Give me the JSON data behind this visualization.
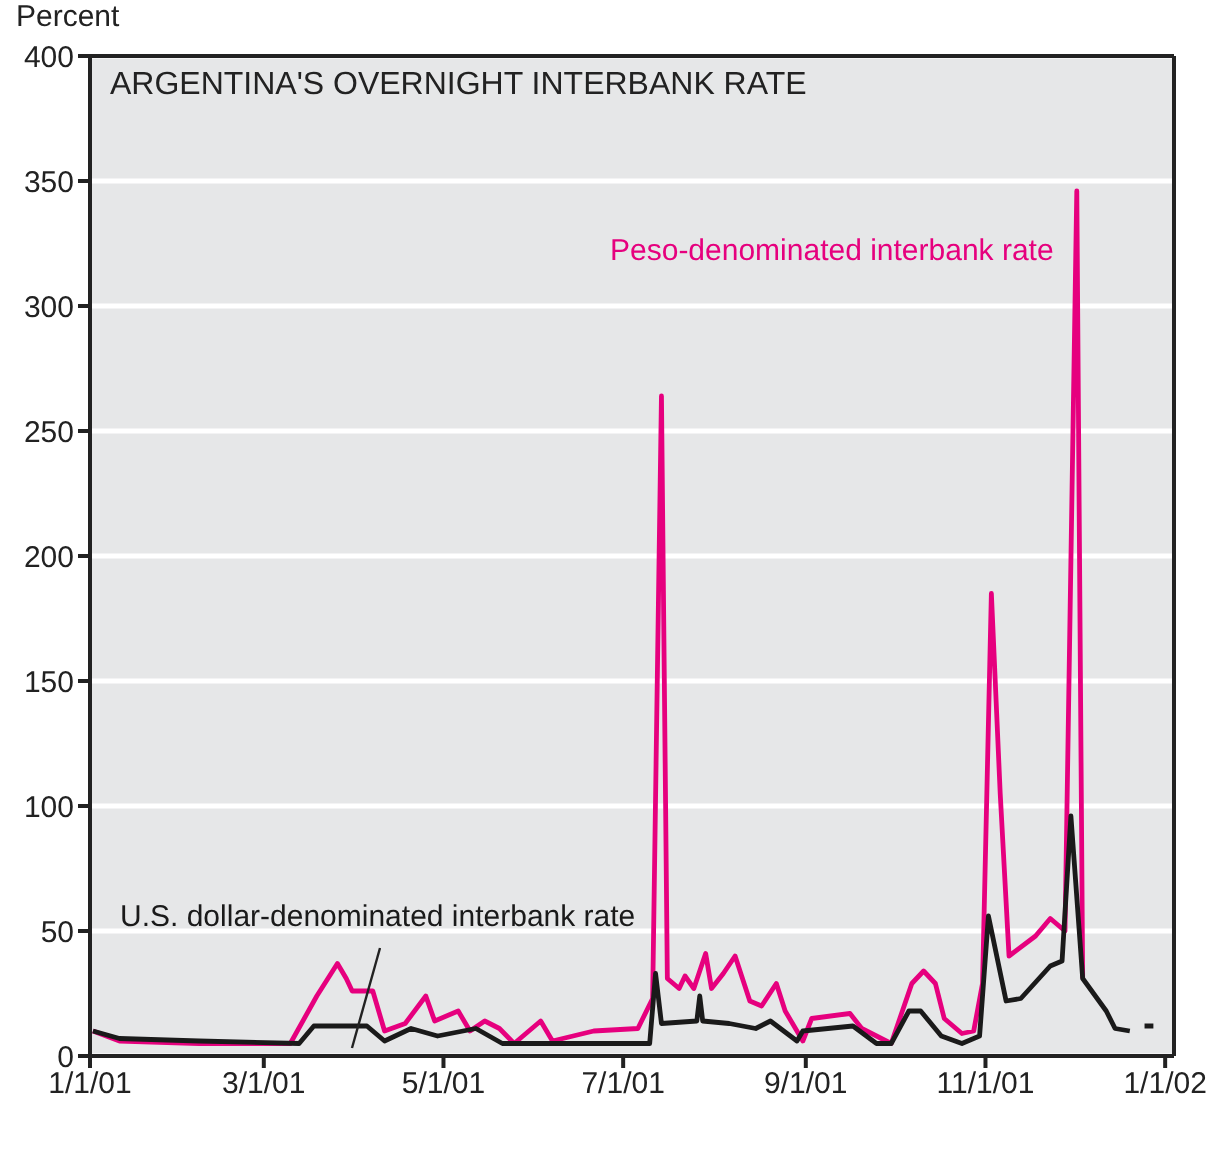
{
  "chart_data": {
    "type": "line",
    "title": "ARGENTINA'S OVERNIGHT INTERBANK RATE",
    "ylabel": "Percent",
    "xlim": [
      "2001-01-01",
      "2002-01-04"
    ],
    "xticks": [
      {
        "value": "2001-01-01",
        "label": "1/1/01"
      },
      {
        "value": "2001-03-01",
        "label": "3/1/01"
      },
      {
        "value": "2001-05-01",
        "label": "5/1/01"
      },
      {
        "value": "2001-07-01",
        "label": "7/1/01"
      },
      {
        "value": "2001-09-01",
        "label": "9/1/01"
      },
      {
        "value": "2001-11-01",
        "label": "11/1/01"
      },
      {
        "value": "2002-01-01",
        "label": "1/1/02"
      }
    ],
    "ylim": [
      0,
      400
    ],
    "yticks": [
      0,
      50,
      100,
      150,
      200,
      250,
      300,
      350,
      400
    ],
    "grid": "y",
    "marker": "none",
    "line_style": "solid",
    "series": [
      {
        "name": "Peso-denominated interbank rate",
        "color": "#e6007e",
        "x": [
          "2001-01-02",
          "2001-01-11",
          "2001-02-07",
          "2001-03-10",
          "2001-03-19",
          "2001-03-26",
          "2001-03-29",
          "2001-03-31",
          "2001-04-07",
          "2001-04-11",
          "2001-04-18",
          "2001-04-25",
          "2001-04-28",
          "2001-05-06",
          "2001-05-10",
          "2001-05-15",
          "2001-05-20",
          "2001-05-25",
          "2001-06-03",
          "2001-06-07",
          "2001-06-21",
          "2001-07-06",
          "2001-07-11",
          "2001-07-14",
          "2001-07-16",
          "2001-07-20",
          "2001-07-22",
          "2001-07-25",
          "2001-07-29",
          "2001-07-31",
          "2001-08-04",
          "2001-08-08",
          "2001-08-13",
          "2001-08-17",
          "2001-08-22",
          "2001-08-25",
          "2001-08-31",
          "2001-09-03",
          "2001-09-16",
          "2001-09-20",
          "2001-09-30",
          "2001-10-07",
          "2001-10-11",
          "2001-10-15",
          "2001-10-18",
          "2001-10-24",
          "2001-10-28",
          "2001-10-31",
          "2001-11-03",
          "2001-11-06",
          "2001-11-09",
          "2001-11-18",
          "2001-11-23",
          "2001-11-28",
          "2001-12-02",
          "2001-12-04"
        ],
        "values": [
          10,
          6,
          5,
          5,
          24,
          37,
          31,
          26,
          26,
          10,
          13,
          24,
          14,
          18,
          10,
          14,
          11,
          5,
          14,
          6,
          10,
          11,
          23,
          264,
          31,
          27,
          32,
          27,
          41,
          27,
          33,
          40,
          22,
          20,
          29,
          18,
          6,
          15,
          17,
          11,
          5,
          29,
          34,
          29,
          15,
          9,
          10,
          29,
          185,
          105,
          40,
          48,
          55,
          50,
          346,
          31
        ]
      },
      {
        "name": "U.S. dollar-denominated interbank rate",
        "color": "#1a1a1a",
        "x": [
          "2001-01-02",
          "2001-01-11",
          "2001-02-07",
          "2001-03-13",
          "2001-03-18",
          "2001-04-05",
          "2001-04-11",
          "2001-04-20",
          "2001-04-29",
          "2001-05-12",
          "2001-05-21",
          "2001-06-22",
          "2001-07-10",
          "2001-07-12",
          "2001-07-14",
          "2001-07-26",
          "2001-07-27",
          "2001-07-28",
          "2001-08-06",
          "2001-08-15",
          "2001-08-20",
          "2001-08-29",
          "2001-08-31",
          "2001-09-17",
          "2001-09-25",
          "2001-09-30",
          "2001-10-06",
          "2001-10-10",
          "2001-10-17",
          "2001-10-24",
          "2001-10-30",
          "2001-11-02",
          "2001-11-08",
          "2001-11-13",
          "2001-11-23",
          "2001-11-27",
          "2001-11-30",
          "2001-12-04",
          "2001-12-12",
          "2001-12-15",
          "2001-12-20",
          "2001-12-23",
          "2001-12-25",
          "2001-12-28"
        ],
        "values": [
          10,
          7,
          6,
          5,
          12,
          12,
          6,
          11,
          8,
          11,
          5,
          5,
          5,
          33,
          13,
          14,
          24,
          14,
          13,
          11,
          14,
          6,
          10,
          12,
          5,
          5,
          18,
          18,
          8,
          5,
          8,
          56,
          22,
          23,
          36,
          38,
          96,
          31,
          18,
          11,
          10,
          null,
          12,
          12
        ]
      }
    ]
  }
}
